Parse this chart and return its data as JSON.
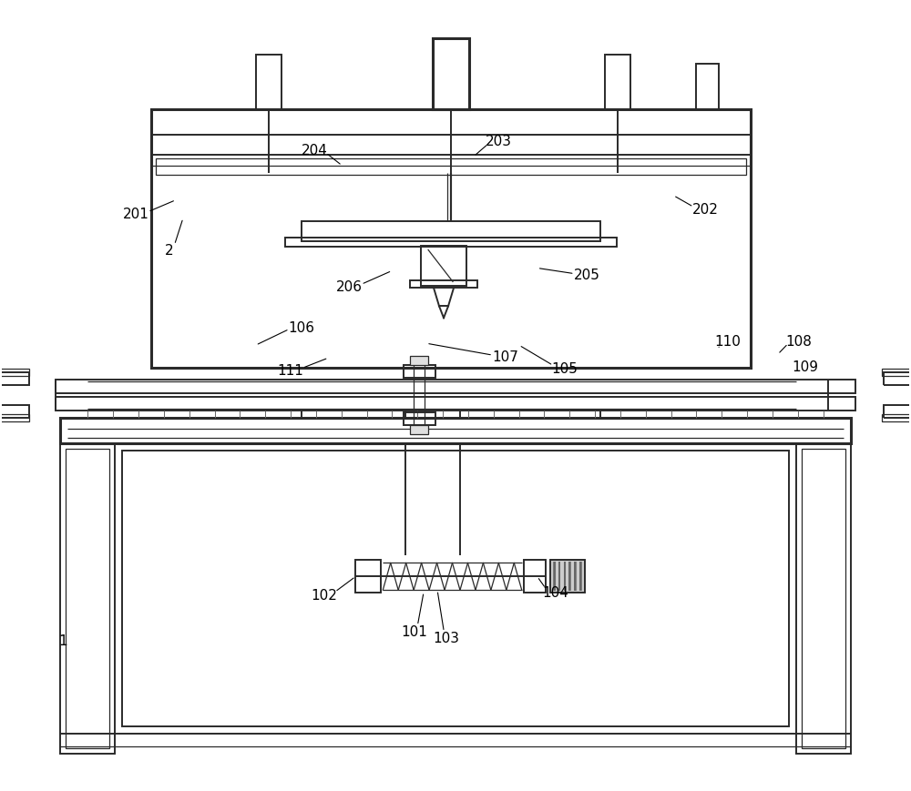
{
  "bg_color": "#ffffff",
  "lc": "#2a2a2a",
  "lw": 1.4,
  "lwt": 2.2,
  "lwn": 0.9,
  "figsize": [
    10.0,
    8.7
  ]
}
